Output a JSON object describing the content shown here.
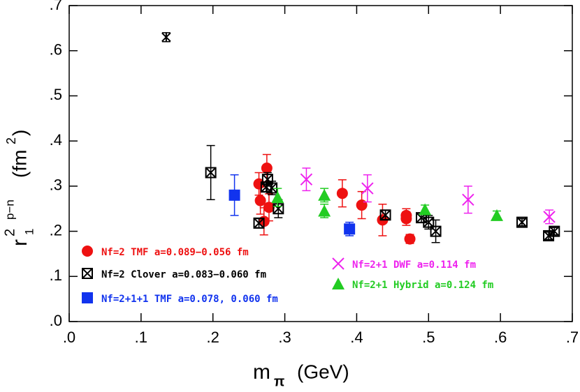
{
  "chart_data": {
    "type": "scatter",
    "xlabel": [
      "m",
      "π",
      "(GeV)"
    ],
    "ylabel": [
      "r",
      "1",
      "2",
      "p−n",
      "(fm",
      "2",
      ")"
    ],
    "xlim": [
      0,
      0.7
    ],
    "ylim": [
      0,
      0.7
    ],
    "xticks": [
      {
        "value": 0,
        "label": ".0"
      },
      {
        "value": 0.1,
        "label": ".1"
      },
      {
        "value": 0.2,
        "label": ".2"
      },
      {
        "value": 0.3,
        "label": ".3"
      },
      {
        "value": 0.4,
        "label": ".4"
      },
      {
        "value": 0.5,
        "label": ".5"
      },
      {
        "value": 0.6,
        "label": ".6"
      },
      {
        "value": 0.7,
        "label": ".7"
      }
    ],
    "yticks": [
      {
        "value": 0,
        "label": ".0"
      },
      {
        "value": 0.1,
        "label": ".1"
      },
      {
        "value": 0.2,
        "label": ".2"
      },
      {
        "value": 0.3,
        "label": ".3"
      },
      {
        "value": 0.4,
        "label": ".4"
      },
      {
        "value": 0.5,
        "label": ".5"
      },
      {
        "value": 0.6,
        "label": ".6"
      },
      {
        "value": 0.7,
        "label": ".7"
      }
    ],
    "series": [
      {
        "name": "Nf=2 TMF a=0.089−0.056 fm",
        "color": "#ee1111",
        "marker": "circle",
        "x": [
          0.264,
          0.266,
          0.271,
          0.275,
          0.278,
          0.38,
          0.407,
          0.436,
          0.469,
          0.469,
          0.474
        ],
        "values": [
          0.305,
          0.268,
          0.222,
          0.34,
          0.253,
          0.284,
          0.258,
          0.225,
          0.235,
          0.228,
          0.183
        ],
        "errors": [
          0.025,
          0.03,
          0.03,
          0.03,
          0.03,
          0.03,
          0.03,
          0.035,
          0.015,
          0.015,
          0.01
        ]
      },
      {
        "name": "Nf=2 Clover a=0.083−0.060 fm",
        "color": "#000000",
        "marker": "xsquare",
        "x": [
          0.197,
          0.264,
          0.274,
          0.276,
          0.282,
          0.291,
          0.44,
          0.49,
          0.5,
          0.51,
          0.63,
          0.667,
          0.675
        ],
        "values": [
          0.33,
          0.218,
          0.298,
          0.315,
          0.296,
          0.25,
          0.236,
          0.23,
          0.22,
          0.2,
          0.22,
          0.19,
          0.2
        ],
        "errors": [
          0.06,
          0.01,
          0.01,
          0.015,
          0.015,
          0.02,
          0.01,
          0.01,
          0.015,
          0.025,
          0.008,
          0.008,
          0.008
        ]
      },
      {
        "name": "Nf=2+1+1 TMF a=0.078, 0.060 fm",
        "color": "#1133ee",
        "marker": "square",
        "x": [
          0.23,
          0.39
        ],
        "values": [
          0.28,
          0.205
        ],
        "errors": [
          0.045,
          0.015
        ]
      },
      {
        "name": "Nf=2+1 DWF a=0.114 fm",
        "color": "#ee22ee",
        "marker": "cross",
        "x": [
          0.33,
          0.415,
          0.555,
          0.668
        ],
        "values": [
          0.315,
          0.295,
          0.27,
          0.232
        ],
        "errors": [
          0.025,
          0.03,
          0.03,
          0.015
        ]
      },
      {
        "name": "Nf=2+1 Hybrid a=0.124 fm",
        "color": "#22cc22",
        "marker": "triangle",
        "x": [
          0.29,
          0.355,
          0.355,
          0.495,
          0.595
        ],
        "values": [
          0.275,
          0.28,
          0.245,
          0.248,
          0.235
        ],
        "errors": [
          0.02,
          0.015,
          0.015,
          0.01,
          0.01
        ]
      },
      {
        "color": "#000000",
        "marker": "star",
        "x": [
          0.135
        ],
        "values": [
          0.63
        ],
        "errors": [
          0.01
        ]
      }
    ]
  }
}
